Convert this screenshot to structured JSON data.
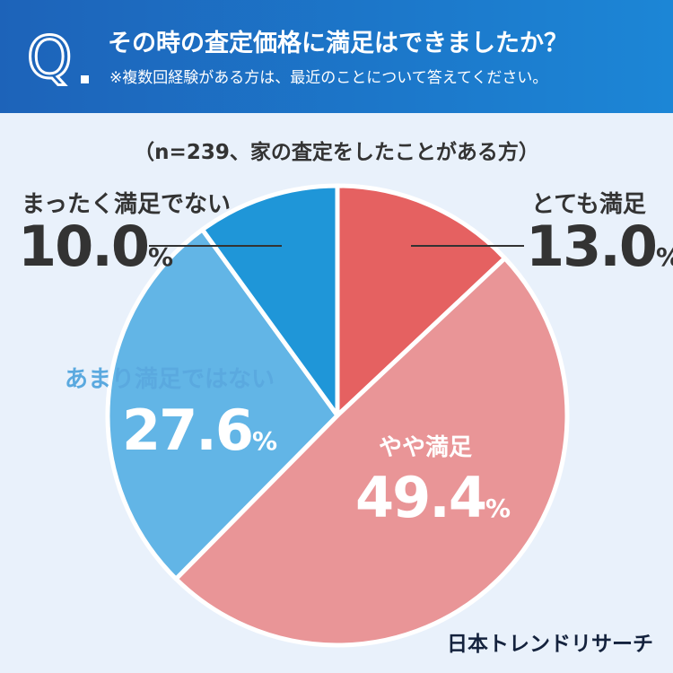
{
  "header": {
    "question": "その時の査定価格に満足はできましたか？",
    "note": "※複数回経験がある方は、最近のことについて答えてください。"
  },
  "sample_note": "（n=239、家の査定をしたことがある方）",
  "brand": "日本トレンドリサーチ",
  "chart_data": {
    "type": "pie",
    "start": "12 o'clock, clockwise",
    "slices": [
      {
        "label": "とても満足",
        "value": 13.0,
        "color": "#e56161"
      },
      {
        "label": "やや満足",
        "value": 49.4,
        "color": "#e99597"
      },
      {
        "label": "あまり満足ではない",
        "value": 27.6,
        "color": "#62b5e6"
      },
      {
        "label": "まったく満足でない",
        "value": 10.0,
        "color": "#1f96d8"
      }
    ]
  },
  "labels": {
    "very_satisfied": {
      "name": "とても満足",
      "value": "13.0"
    },
    "somewhat_satisfied": {
      "name": "やや満足",
      "value": "49.4"
    },
    "not_very_satisfied": {
      "name": "あまり満足ではない",
      "value": "27.6"
    },
    "not_satisfied": {
      "name": "まったく満足でない",
      "value": "10.0"
    },
    "percent_symbol": "%"
  }
}
